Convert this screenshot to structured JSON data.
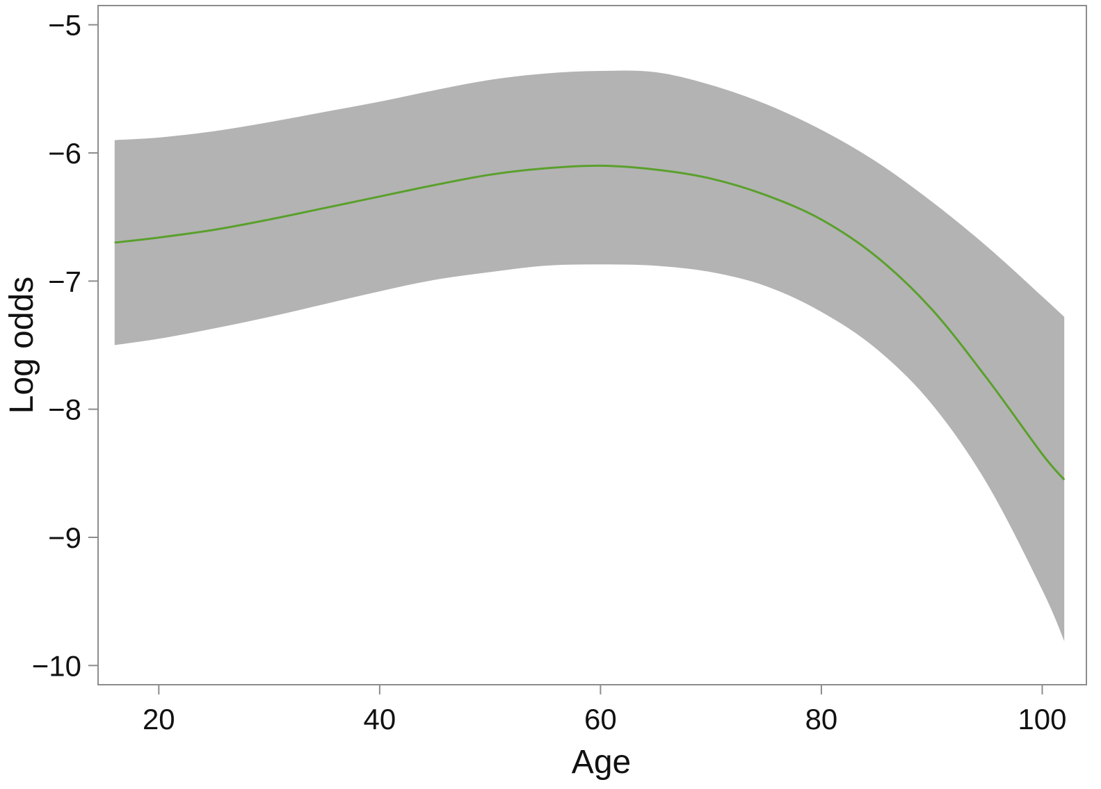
{
  "chart_data": {
    "type": "line",
    "title": "",
    "xlabel": "Age",
    "ylabel": "Log odds",
    "xlim": [
      14.5,
      104
    ],
    "ylim": [
      -10.15,
      -4.85
    ],
    "x_ticks": [
      20,
      40,
      60,
      80,
      100
    ],
    "x_tick_labels": [
      "20",
      "40",
      "60",
      "80",
      "100"
    ],
    "y_ticks": [
      -5,
      -6,
      -7,
      -8,
      -9,
      -10
    ],
    "y_tick_labels": [
      "−5",
      "−6",
      "−7",
      "−8",
      "−9",
      "−10"
    ],
    "grid": false,
    "legend": "none",
    "colors": {
      "line": "#5aa02c",
      "band": "#b3b3b3",
      "frame": "#8c8c8c",
      "text": "#111111"
    },
    "series": [
      {
        "role": "estimate",
        "x": [
          16,
          20,
          25,
          30,
          35,
          40,
          45,
          50,
          55,
          60,
          65,
          70,
          75,
          80,
          85,
          90,
          95,
          100,
          102
        ],
        "y": [
          -6.7,
          -6.66,
          -6.6,
          -6.52,
          -6.43,
          -6.34,
          -6.25,
          -6.17,
          -6.12,
          -6.1,
          -6.13,
          -6.2,
          -6.33,
          -6.52,
          -6.81,
          -7.22,
          -7.76,
          -8.35,
          -8.55
        ]
      },
      {
        "role": "confidence-band",
        "x": [
          16,
          20,
          25,
          30,
          35,
          40,
          45,
          50,
          55,
          60,
          65,
          70,
          75,
          80,
          85,
          90,
          95,
          100,
          102
        ],
        "upper": [
          -5.9,
          -5.88,
          -5.83,
          -5.76,
          -5.68,
          -5.6,
          -5.51,
          -5.43,
          -5.38,
          -5.36,
          -5.37,
          -5.47,
          -5.62,
          -5.82,
          -6.07,
          -6.38,
          -6.73,
          -7.12,
          -7.28
        ],
        "lower": [
          -7.5,
          -7.45,
          -7.37,
          -7.28,
          -7.18,
          -7.08,
          -6.99,
          -6.93,
          -6.88,
          -6.87,
          -6.88,
          -6.93,
          -7.04,
          -7.24,
          -7.53,
          -7.96,
          -8.58,
          -9.41,
          -9.81
        ]
      }
    ]
  }
}
